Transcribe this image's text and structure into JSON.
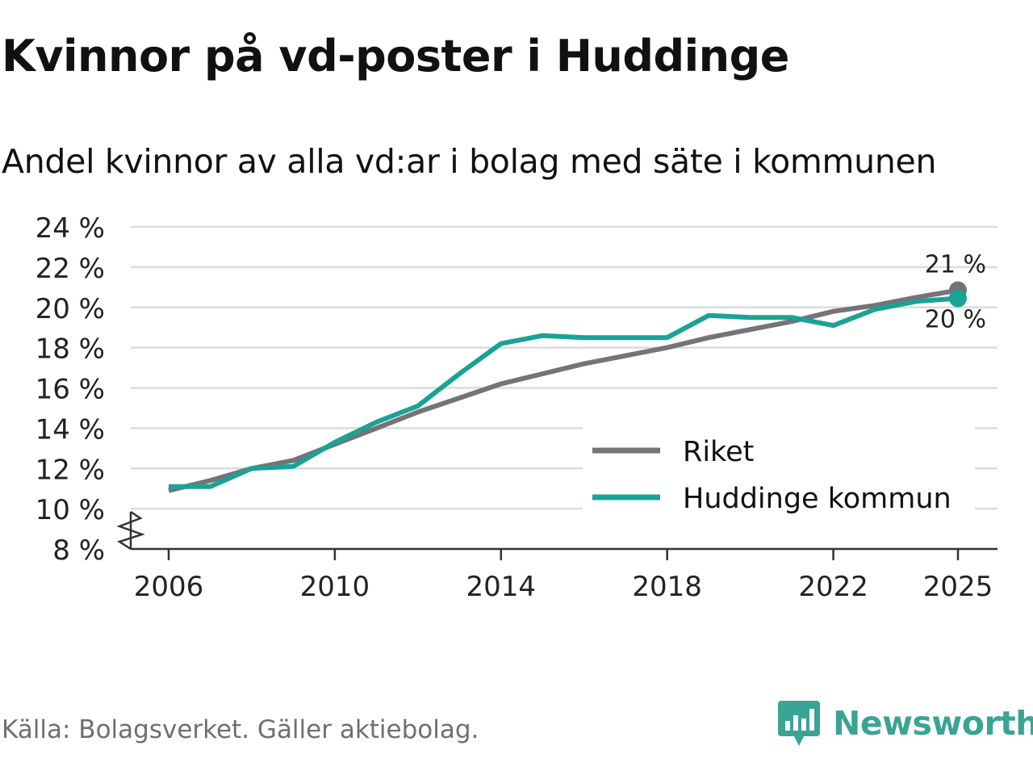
{
  "title": "Kvinnor på vd-poster i Huddinge",
  "subtitle": "Andel kvinnor av alla vd:ar i bolag med säte i kommunen",
  "source": "Källa: Bolagsverket. Gäller aktiebolag.",
  "brand": "Newsworthy",
  "colors": {
    "riket": "#767378",
    "huddinge": "#1aa394",
    "grid": "#dcdcdc",
    "axis": "#333333",
    "brand": "#3aa494"
  },
  "chart_data": {
    "type": "line",
    "title": "Kvinnor på vd-poster i Huddinge",
    "subtitle": "Andel kvinnor av alla vd:ar i bolag med säte i kommunen",
    "xlabel": "",
    "ylabel": "",
    "ylim": [
      8,
      24
    ],
    "axis_break": true,
    "y_ticks": [
      8,
      10,
      12,
      14,
      16,
      18,
      20,
      22,
      24
    ],
    "y_tick_labels": [
      "8 %",
      "10 %",
      "12 %",
      "14 %",
      "16 %",
      "18 %",
      "20 %",
      "22 %",
      "24 %"
    ],
    "x_ticks": [
      2006,
      2010,
      2014,
      2018,
      2022,
      2025
    ],
    "x_tick_labels": [
      "2006",
      "2010",
      "2014",
      "2018",
      "2022",
      "2025"
    ],
    "legend_position": "bottom-right",
    "x": [
      2006,
      2007,
      2008,
      2009,
      2010,
      2011,
      2012,
      2013,
      2014,
      2015,
      2016,
      2017,
      2018,
      2019,
      2020,
      2021,
      2022,
      2023,
      2024,
      2025
    ],
    "series": [
      {
        "name": "Riket",
        "color": "#767378",
        "values": [
          10.9,
          11.4,
          12.0,
          12.4,
          13.2,
          14.0,
          14.8,
          15.5,
          16.2,
          16.7,
          17.2,
          17.6,
          18.0,
          18.5,
          18.9,
          19.3,
          19.8,
          20.1,
          20.5,
          20.85
        ],
        "end_label": "21 %"
      },
      {
        "name": "Huddinge kommun",
        "color": "#1aa394",
        "values": [
          11.1,
          11.1,
          12.0,
          12.1,
          13.3,
          14.3,
          15.1,
          16.7,
          18.2,
          18.6,
          18.5,
          18.5,
          18.5,
          19.6,
          19.5,
          19.5,
          19.1,
          19.9,
          20.3,
          20.45
        ],
        "end_label": "20 %"
      }
    ]
  }
}
